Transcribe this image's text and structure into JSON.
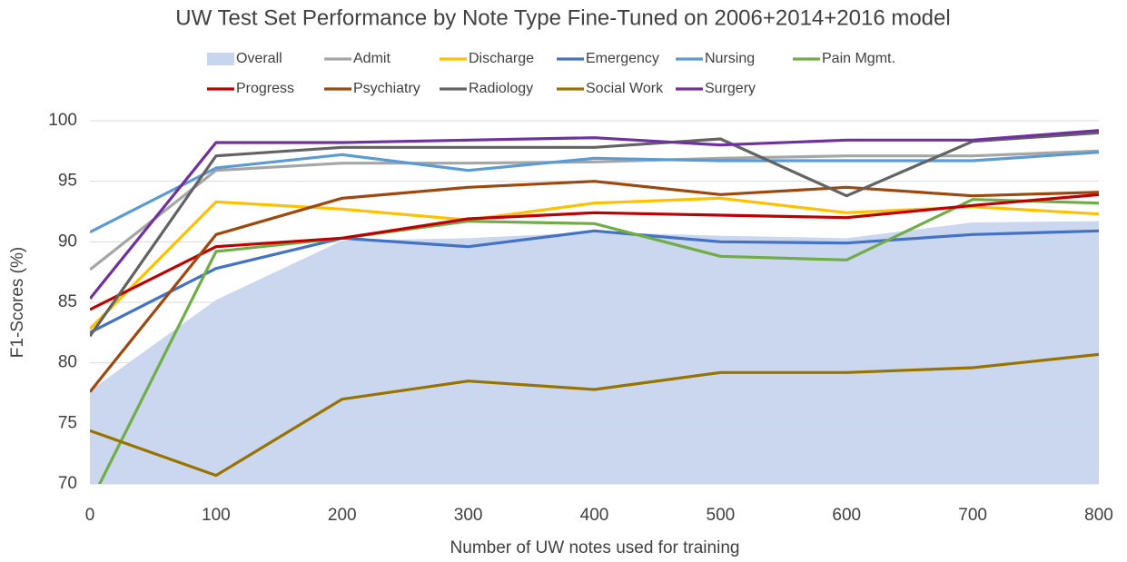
{
  "chart_data": {
    "type": "line",
    "title": "UW Test Set Performance by Note Type Fine-Tuned on 2006+2014+2016 model",
    "x_label": "Number of UW notes used for training",
    "y_label": "F1-Scores (%)",
    "x": [
      0,
      100,
      200,
      300,
      400,
      500,
      600,
      700,
      800
    ],
    "xlim": [
      0,
      800
    ],
    "xticks": [
      0,
      100,
      200,
      300,
      400,
      500,
      600,
      700,
      800
    ],
    "ylim": [
      70,
      100
    ],
    "yticks": [
      70,
      75,
      80,
      85,
      90,
      95,
      100
    ],
    "grid": true,
    "legend": "top",
    "series": [
      {
        "name": "Overall",
        "type": "area",
        "color": "#c7d5ee",
        "values": [
          77.7,
          85.2,
          90.1,
          90.3,
          90.8,
          90.5,
          90.3,
          91.6,
          91.7
        ]
      },
      {
        "name": "Admit",
        "color": "#a6a6a6",
        "values": [
          87.7,
          95.9,
          96.5,
          96.5,
          96.6,
          96.9,
          97.1,
          97.1,
          97.5
        ]
      },
      {
        "name": "Discharge",
        "color": "#ffc000",
        "values": [
          82.8,
          93.3,
          92.7,
          91.8,
          93.2,
          93.6,
          92.4,
          92.9,
          92.3
        ]
      },
      {
        "name": "Emergency",
        "color": "#4472c4",
        "values": [
          82.5,
          87.8,
          90.3,
          89.6,
          90.9,
          90.0,
          89.9,
          90.6,
          90.9
        ]
      },
      {
        "name": "Nursing",
        "color": "#5b9bd5",
        "values": [
          90.8,
          96.1,
          97.2,
          95.9,
          96.9,
          96.7,
          96.7,
          96.7,
          97.4
        ]
      },
      {
        "name": "Pain Mgmt.",
        "color": "#70ad47",
        "values": [
          68.4,
          89.2,
          90.3,
          91.7,
          91.5,
          88.8,
          88.5,
          93.5,
          93.2
        ]
      },
      {
        "name": "Progress",
        "color": "#c00000",
        "values": [
          84.4,
          89.6,
          90.3,
          91.9,
          92.4,
          92.2,
          92.0,
          93.0,
          93.9
        ]
      },
      {
        "name": "Psychiatry",
        "color": "#9e480e",
        "values": [
          77.6,
          90.6,
          93.6,
          94.5,
          95.0,
          93.9,
          94.5,
          93.8,
          94.1
        ]
      },
      {
        "name": "Radiology",
        "color": "#636363",
        "values": [
          82.2,
          97.1,
          97.8,
          97.8,
          97.8,
          98.5,
          93.8,
          98.3,
          99.0
        ]
      },
      {
        "name": "Social Work",
        "color": "#997300",
        "values": [
          74.4,
          70.7,
          77.0,
          78.5,
          77.8,
          79.2,
          79.2,
          79.6,
          80.7
        ]
      },
      {
        "name": "Surgery",
        "color": "#7030a0",
        "values": [
          85.3,
          98.2,
          98.2,
          98.4,
          98.6,
          98.0,
          98.4,
          98.4,
          99.2
        ]
      }
    ]
  }
}
